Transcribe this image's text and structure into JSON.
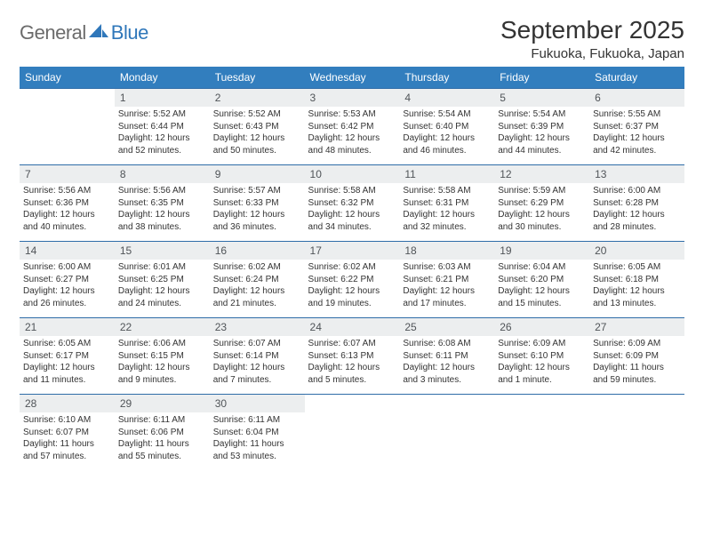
{
  "logo": {
    "general": "General",
    "blue": "Blue"
  },
  "title": "September 2025",
  "location": "Fukuoka, Fukuoka, Japan",
  "colors": {
    "header_bg": "#327ebe",
    "header_text": "#ffffff",
    "daynum_bg": "#eceeef",
    "daynum_text": "#505458",
    "border": "#2f6da8",
    "logo_gray": "#6b6b6b",
    "logo_blue": "#2f77ba"
  },
  "dayHeaders": [
    "Sunday",
    "Monday",
    "Tuesday",
    "Wednesday",
    "Thursday",
    "Friday",
    "Saturday"
  ],
  "weeks": [
    [
      {
        "n": "",
        "lines": []
      },
      {
        "n": "1",
        "lines": [
          "Sunrise: 5:52 AM",
          "Sunset: 6:44 PM",
          "Daylight: 12 hours",
          "and 52 minutes."
        ]
      },
      {
        "n": "2",
        "lines": [
          "Sunrise: 5:52 AM",
          "Sunset: 6:43 PM",
          "Daylight: 12 hours",
          "and 50 minutes."
        ]
      },
      {
        "n": "3",
        "lines": [
          "Sunrise: 5:53 AM",
          "Sunset: 6:42 PM",
          "Daylight: 12 hours",
          "and 48 minutes."
        ]
      },
      {
        "n": "4",
        "lines": [
          "Sunrise: 5:54 AM",
          "Sunset: 6:40 PM",
          "Daylight: 12 hours",
          "and 46 minutes."
        ]
      },
      {
        "n": "5",
        "lines": [
          "Sunrise: 5:54 AM",
          "Sunset: 6:39 PM",
          "Daylight: 12 hours",
          "and 44 minutes."
        ]
      },
      {
        "n": "6",
        "lines": [
          "Sunrise: 5:55 AM",
          "Sunset: 6:37 PM",
          "Daylight: 12 hours",
          "and 42 minutes."
        ]
      }
    ],
    [
      {
        "n": "7",
        "lines": [
          "Sunrise: 5:56 AM",
          "Sunset: 6:36 PM",
          "Daylight: 12 hours",
          "and 40 minutes."
        ]
      },
      {
        "n": "8",
        "lines": [
          "Sunrise: 5:56 AM",
          "Sunset: 6:35 PM",
          "Daylight: 12 hours",
          "and 38 minutes."
        ]
      },
      {
        "n": "9",
        "lines": [
          "Sunrise: 5:57 AM",
          "Sunset: 6:33 PM",
          "Daylight: 12 hours",
          "and 36 minutes."
        ]
      },
      {
        "n": "10",
        "lines": [
          "Sunrise: 5:58 AM",
          "Sunset: 6:32 PM",
          "Daylight: 12 hours",
          "and 34 minutes."
        ]
      },
      {
        "n": "11",
        "lines": [
          "Sunrise: 5:58 AM",
          "Sunset: 6:31 PM",
          "Daylight: 12 hours",
          "and 32 minutes."
        ]
      },
      {
        "n": "12",
        "lines": [
          "Sunrise: 5:59 AM",
          "Sunset: 6:29 PM",
          "Daylight: 12 hours",
          "and 30 minutes."
        ]
      },
      {
        "n": "13",
        "lines": [
          "Sunrise: 6:00 AM",
          "Sunset: 6:28 PM",
          "Daylight: 12 hours",
          "and 28 minutes."
        ]
      }
    ],
    [
      {
        "n": "14",
        "lines": [
          "Sunrise: 6:00 AM",
          "Sunset: 6:27 PM",
          "Daylight: 12 hours",
          "and 26 minutes."
        ]
      },
      {
        "n": "15",
        "lines": [
          "Sunrise: 6:01 AM",
          "Sunset: 6:25 PM",
          "Daylight: 12 hours",
          "and 24 minutes."
        ]
      },
      {
        "n": "16",
        "lines": [
          "Sunrise: 6:02 AM",
          "Sunset: 6:24 PM",
          "Daylight: 12 hours",
          "and 21 minutes."
        ]
      },
      {
        "n": "17",
        "lines": [
          "Sunrise: 6:02 AM",
          "Sunset: 6:22 PM",
          "Daylight: 12 hours",
          "and 19 minutes."
        ]
      },
      {
        "n": "18",
        "lines": [
          "Sunrise: 6:03 AM",
          "Sunset: 6:21 PM",
          "Daylight: 12 hours",
          "and 17 minutes."
        ]
      },
      {
        "n": "19",
        "lines": [
          "Sunrise: 6:04 AM",
          "Sunset: 6:20 PM",
          "Daylight: 12 hours",
          "and 15 minutes."
        ]
      },
      {
        "n": "20",
        "lines": [
          "Sunrise: 6:05 AM",
          "Sunset: 6:18 PM",
          "Daylight: 12 hours",
          "and 13 minutes."
        ]
      }
    ],
    [
      {
        "n": "21",
        "lines": [
          "Sunrise: 6:05 AM",
          "Sunset: 6:17 PM",
          "Daylight: 12 hours",
          "and 11 minutes."
        ]
      },
      {
        "n": "22",
        "lines": [
          "Sunrise: 6:06 AM",
          "Sunset: 6:15 PM",
          "Daylight: 12 hours",
          "and 9 minutes."
        ]
      },
      {
        "n": "23",
        "lines": [
          "Sunrise: 6:07 AM",
          "Sunset: 6:14 PM",
          "Daylight: 12 hours",
          "and 7 minutes."
        ]
      },
      {
        "n": "24",
        "lines": [
          "Sunrise: 6:07 AM",
          "Sunset: 6:13 PM",
          "Daylight: 12 hours",
          "and 5 minutes."
        ]
      },
      {
        "n": "25",
        "lines": [
          "Sunrise: 6:08 AM",
          "Sunset: 6:11 PM",
          "Daylight: 12 hours",
          "and 3 minutes."
        ]
      },
      {
        "n": "26",
        "lines": [
          "Sunrise: 6:09 AM",
          "Sunset: 6:10 PM",
          "Daylight: 12 hours",
          "and 1 minute."
        ]
      },
      {
        "n": "27",
        "lines": [
          "Sunrise: 6:09 AM",
          "Sunset: 6:09 PM",
          "Daylight: 11 hours",
          "and 59 minutes."
        ]
      }
    ],
    [
      {
        "n": "28",
        "lines": [
          "Sunrise: 6:10 AM",
          "Sunset: 6:07 PM",
          "Daylight: 11 hours",
          "and 57 minutes."
        ]
      },
      {
        "n": "29",
        "lines": [
          "Sunrise: 6:11 AM",
          "Sunset: 6:06 PM",
          "Daylight: 11 hours",
          "and 55 minutes."
        ]
      },
      {
        "n": "30",
        "lines": [
          "Sunrise: 6:11 AM",
          "Sunset: 6:04 PM",
          "Daylight: 11 hours",
          "and 53 minutes."
        ]
      },
      {
        "n": "",
        "lines": []
      },
      {
        "n": "",
        "lines": []
      },
      {
        "n": "",
        "lines": []
      },
      {
        "n": "",
        "lines": []
      }
    ]
  ]
}
